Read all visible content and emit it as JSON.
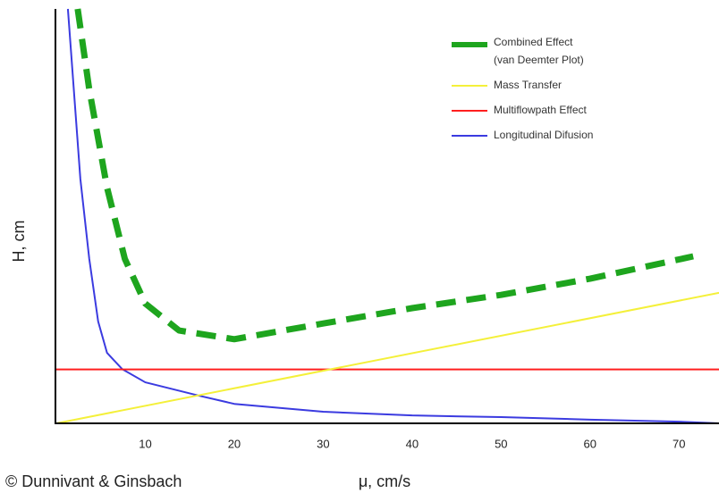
{
  "chart_data": {
    "type": "line",
    "xlabel": "μ, cm/s",
    "ylabel": "H, cm",
    "credit": "© Dunnivant & Ginsbach",
    "xlim": [
      0,
      74.5
    ],
    "ylim": [
      0,
      100
    ],
    "xticks": [
      10,
      20,
      30,
      40,
      50,
      60,
      70
    ],
    "grid": false,
    "legend": "upper right",
    "series": [
      {
        "name": "Combined Effect\n(van Deemter Plot)",
        "color": "#1ea51e",
        "dashed": true,
        "width": 7,
        "x": [
          2.4,
          3.7,
          5.7,
          7.7,
          10,
          13.8,
          20,
          30,
          40,
          50,
          60,
          71.6
        ],
        "values": [
          100,
          80.6,
          56.9,
          39.7,
          28.9,
          22.4,
          20.3,
          24.1,
          27.8,
          31,
          34.9,
          40.3
        ]
      },
      {
        "name": "Mass Transfer",
        "color": "#f4f03a",
        "dashed": false,
        "width": 2,
        "x": [
          0,
          74.5
        ],
        "values": [
          0,
          31.5
        ]
      },
      {
        "name": "Multiflowpath Effect",
        "color": "#ff1f1f",
        "dashed": false,
        "width": 2,
        "x": [
          0,
          74.5
        ],
        "values": [
          13,
          13
        ]
      },
      {
        "name": "Longitudinal Difusion",
        "color": "#3b3be0",
        "dashed": false,
        "width": 2,
        "x": [
          1.3,
          2.7,
          3.7,
          4.7,
          5.7,
          7.4,
          10,
          16,
          20,
          30,
          40,
          50,
          60,
          70,
          74.5
        ],
        "values": [
          100,
          59,
          39.7,
          24.6,
          17,
          13.1,
          9.9,
          6.7,
          4.7,
          2.8,
          1.9,
          1.5,
          0.9,
          0.4,
          0
        ]
      }
    ]
  }
}
